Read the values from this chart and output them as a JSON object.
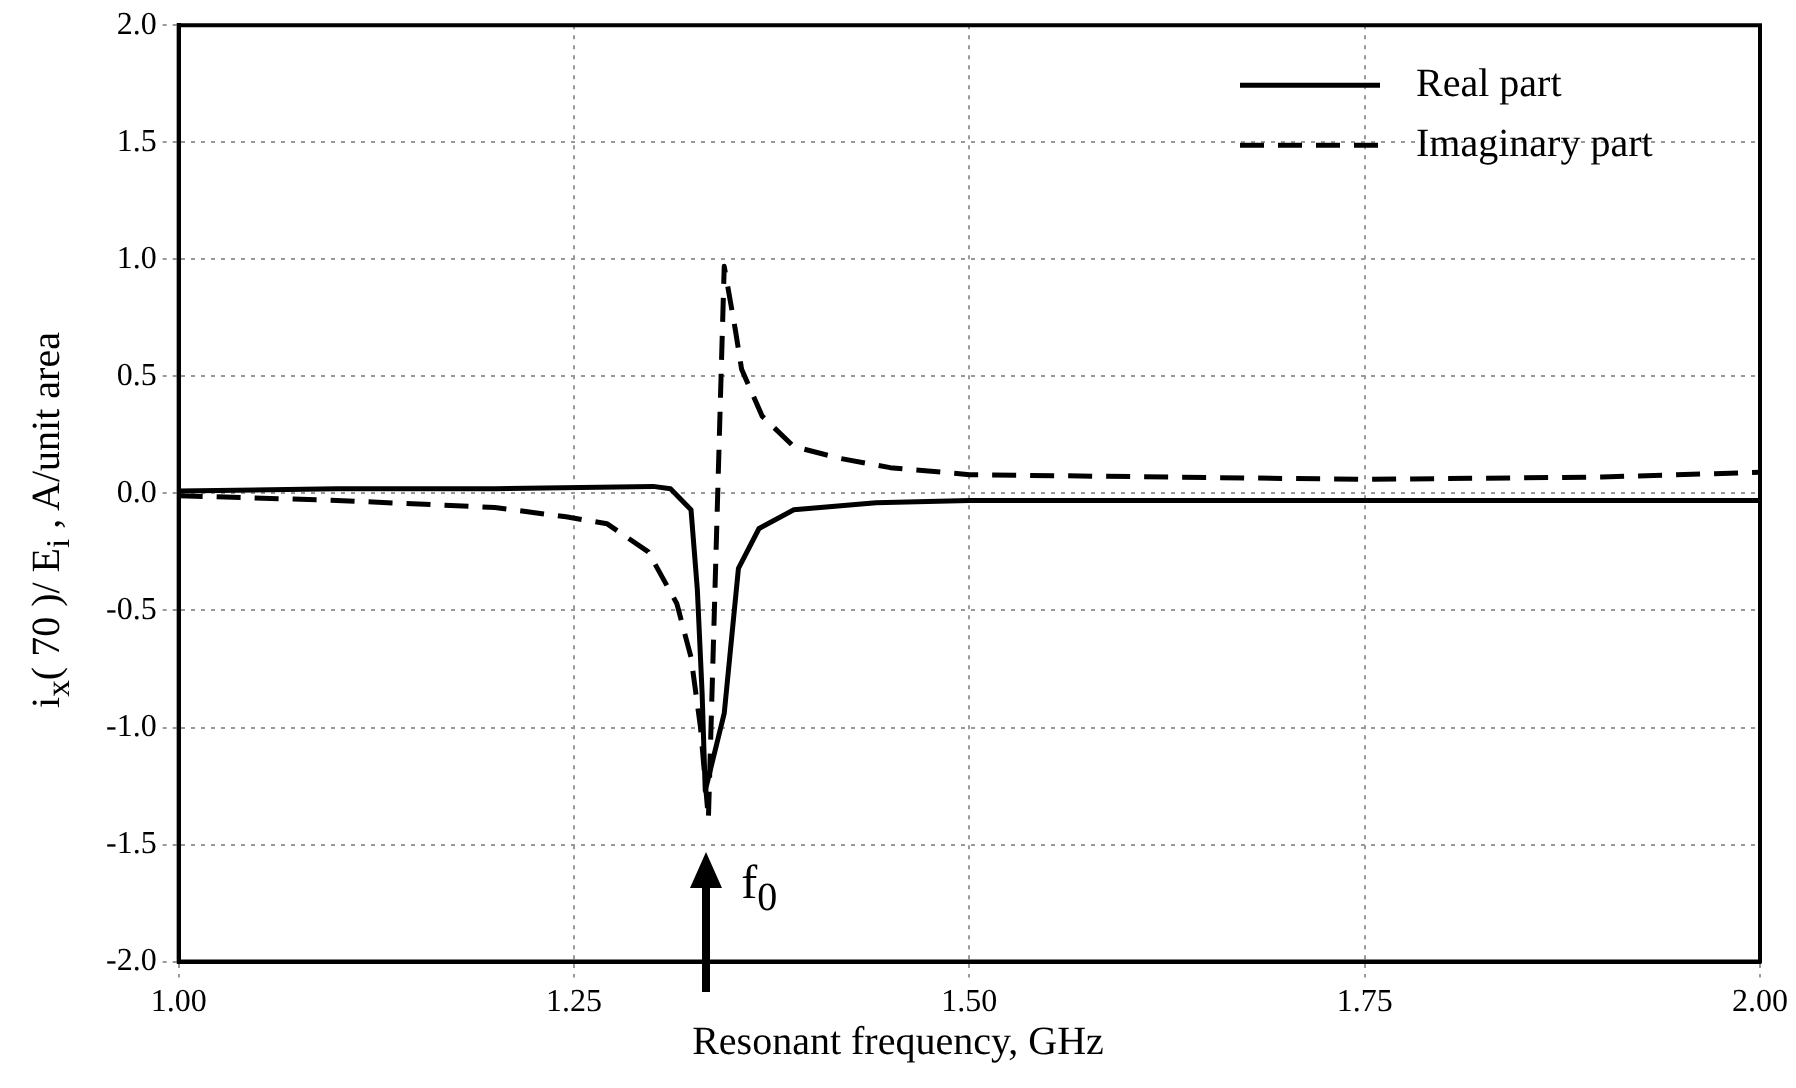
{
  "chart_data": {
    "type": "line",
    "xlabel": "Resonant frequency, GHz",
    "ylabel": "i$_{x}$( 70 )/ E$_{i}$ , A/unit area",
    "xlim": [
      1.0,
      2.0
    ],
    "xticks": [
      {
        "value": 1.0,
        "label": "1.00"
      },
      {
        "value": 1.25,
        "label": "1.25"
      },
      {
        "value": 1.5,
        "label": "1.50"
      },
      {
        "value": 1.75,
        "label": "1.75"
      },
      {
        "value": 2.0,
        "label": "2.00"
      }
    ],
    "ylim": [
      -2.0,
      2.0
    ],
    "yticks": [
      {
        "value": -2.0,
        "label": "-2.0"
      },
      {
        "value": -1.5,
        "label": "-1.5"
      },
      {
        "value": -1.0,
        "label": "-1.0"
      },
      {
        "value": -0.5,
        "label": "-0.5"
      },
      {
        "value": 0.0,
        "label": "0.0"
      },
      {
        "value": 0.5,
        "label": "0.5"
      },
      {
        "value": 1.0,
        "label": "1.0"
      },
      {
        "value": 1.5,
        "label": "1.5"
      },
      {
        "value": 2.0,
        "label": "2.0"
      }
    ],
    "grid": true,
    "legend": "top right",
    "marker": "none",
    "annotations": [
      "f$_{0}$"
    ],
    "series": [
      {
        "name": "Real part",
        "color": "#000000",
        "line_style": "solid",
        "x": [
          1.0,
          1.1,
          1.2,
          1.3,
          1.311,
          1.324,
          1.328,
          1.331,
          1.333,
          1.345,
          1.354,
          1.367,
          1.389,
          1.441,
          1.5,
          1.75,
          2.0
        ],
        "values": [
          0.01,
          0.02,
          0.02,
          0.03,
          0.02,
          -0.07,
          -0.41,
          -0.85,
          -1.27,
          -0.94,
          -0.32,
          -0.15,
          -0.07,
          -0.04,
          -0.03,
          -0.03,
          -0.03
        ]
      },
      {
        "name": "Imaginary part",
        "color": "#000000",
        "line_style": "dashed",
        "x": [
          1.0,
          1.1,
          1.2,
          1.245,
          1.271,
          1.297,
          1.315,
          1.324,
          1.33,
          1.335,
          1.345,
          1.352,
          1.356,
          1.369,
          1.389,
          1.418,
          1.45,
          1.5,
          1.75,
          1.9,
          2.0
        ],
        "values": [
          -0.01,
          -0.03,
          -0.06,
          -0.1,
          -0.13,
          -0.25,
          -0.47,
          -0.7,
          -1.0,
          -1.39,
          0.97,
          0.7,
          0.53,
          0.33,
          0.2,
          0.15,
          0.11,
          0.08,
          0.06,
          0.07,
          0.09
        ]
      }
    ]
  }
}
